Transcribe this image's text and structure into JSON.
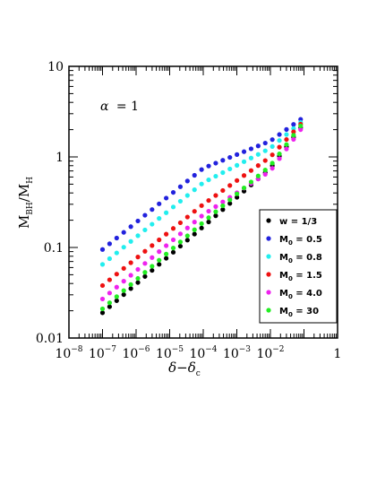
{
  "chart_data": {
    "type": "scatter",
    "annotation": {
      "symbol": "α",
      "value": "= 1"
    },
    "xlabel": {
      "main": "δ−δ",
      "sub": "c"
    },
    "ylabel": {
      "main": "M",
      "sub1": "BH",
      "mid": "/M",
      "sub2": "H"
    },
    "x_scale": "log",
    "y_scale": "log",
    "xlim": [
      1e-08,
      1
    ],
    "ylim": [
      0.01,
      10
    ],
    "x_ticks": [
      {
        "value": 1e-08,
        "base": "10",
        "exp": "−8"
      },
      {
        "value": 1e-07,
        "base": "10",
        "exp": "−7"
      },
      {
        "value": 1e-06,
        "base": "10",
        "exp": "−6"
      },
      {
        "value": 1e-05,
        "base": "10",
        "exp": "−5"
      },
      {
        "value": 0.0001,
        "base": "10",
        "exp": "−4"
      },
      {
        "value": 0.001,
        "base": "10",
        "exp": "−3"
      },
      {
        "value": 0.01,
        "base": "10",
        "exp": "−2"
      },
      {
        "value": 1,
        "base": "1",
        "exp": ""
      }
    ],
    "y_ticks": [
      {
        "value": 0.01,
        "label": "0.01"
      },
      {
        "value": 0.1,
        "label": "0.1"
      },
      {
        "value": 1,
        "label": "1"
      },
      {
        "value": 10,
        "label": "10"
      }
    ],
    "grid": false,
    "legend_position": "bottom-right",
    "series": [
      {
        "name_main": "w = 1/3",
        "name_sub": "",
        "name_rest": "",
        "color": "#000000",
        "x_exp_range": [
          -7,
          -1.1
        ],
        "points": 29,
        "y_anchor_exp": [
          -7,
          -4,
          -2,
          -1.1
        ],
        "y_anchor": [
          0.019,
          0.17,
          0.75,
          2.1
        ]
      },
      {
        "name_main": "M",
        "name_sub": "0",
        "name_rest": " = 0.5",
        "color": "#2222dd",
        "x_exp_range": [
          -7,
          -1.1
        ],
        "points": 29,
        "y_anchor_exp": [
          -7,
          -4,
          -2,
          -1.1
        ],
        "y_anchor": [
          0.095,
          0.75,
          1.5,
          2.6
        ]
      },
      {
        "name_main": "M",
        "name_sub": "0",
        "name_rest": " = 0.8",
        "color": "#22eeee",
        "x_exp_range": [
          -7,
          -1.1
        ],
        "points": 29,
        "y_anchor_exp": [
          -7,
          -4,
          -2,
          -1.1
        ],
        "y_anchor": [
          0.065,
          0.52,
          1.25,
          2.4
        ]
      },
      {
        "name_main": "M",
        "name_sub": "0",
        "name_rest": " = 1.5",
        "color": "#ee1111",
        "x_exp_range": [
          -7,
          -1.1
        ],
        "points": 29,
        "y_anchor_exp": [
          -7,
          -4,
          -2,
          -1.1
        ],
        "y_anchor": [
          0.038,
          0.3,
          1.0,
          2.3
        ]
      },
      {
        "name_main": "M",
        "name_sub": "0",
        "name_rest": " = 4.0",
        "color": "#ee22ee",
        "x_exp_range": [
          -7,
          -1.1
        ],
        "points": 29,
        "y_anchor_exp": [
          -7,
          -4,
          -2,
          -1.1
        ],
        "y_anchor": [
          0.027,
          0.23,
          0.7,
          2.0
        ]
      },
      {
        "name_main": "M",
        "name_sub": "0",
        "name_rest": " = 30",
        "color": "#22ee22",
        "x_exp_range": [
          -7,
          -1.1
        ],
        "points": 29,
        "y_anchor_exp": [
          -7,
          -4,
          -2,
          -1.1
        ],
        "y_anchor": [
          0.021,
          0.19,
          0.8,
          2.2
        ]
      }
    ]
  }
}
